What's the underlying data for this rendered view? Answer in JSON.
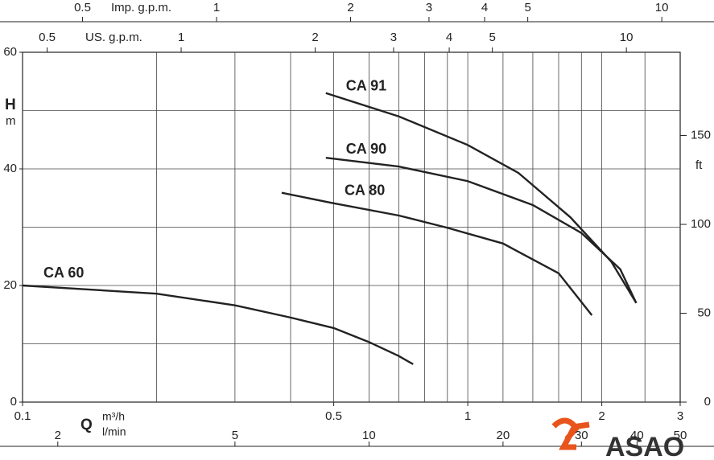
{
  "chart_data": {
    "type": "line",
    "log_x": true,
    "y_label": "H",
    "y_unit": "m",
    "y2_unit": "ft",
    "x_label": "Q",
    "x_unit": "m³/h",
    "x2_unit": "l/min",
    "top_axes": [
      {
        "label": "Imp. g.p.m.",
        "xlim": [
          0.36662,
          10.9986
        ],
        "xticks": [
          0.5,
          1,
          2,
          3,
          4,
          5,
          10
        ]
      },
      {
        "label": "US. g.p.m.",
        "xlim": [
          0.44029,
          13.2086
        ],
        "xticks": [
          0.5,
          1,
          2,
          3,
          4,
          5,
          10
        ]
      }
    ],
    "bottom_axis2": {
      "xlim": [
        1.6667,
        50
      ],
      "xticks": [
        2,
        5,
        10,
        20,
        30,
        40,
        50
      ]
    },
    "xlim": [
      0.1,
      3
    ],
    "xticks": [
      0.1,
      0.5,
      1,
      2,
      3
    ],
    "xgrid": [
      0.2,
      0.3,
      0.4,
      0.5,
      0.6,
      0.7,
      0.8,
      0.9,
      1,
      1.2,
      1.4,
      1.6,
      1.8,
      2,
      2.5
    ],
    "ylim": [
      0,
      60
    ],
    "yticks": [
      0,
      20,
      40,
      60
    ],
    "ygrid": [
      10,
      20,
      30,
      40,
      50
    ],
    "y2lim": [
      0,
      196.85
    ],
    "y2ticks": [
      0,
      50,
      100,
      150
    ],
    "line_color": "#222",
    "series": [
      {
        "name": "CA 60",
        "x": [
          0.1,
          0.2,
          0.3,
          0.4,
          0.5,
          0.6,
          0.7,
          0.754
        ],
        "values": [
          20,
          18.6,
          16.6,
          14.5,
          12.7,
          10.3,
          7.9,
          6.5
        ]
      },
      {
        "name": "CA 80",
        "x": [
          0.382,
          0.5,
          0.7,
          0.9,
          1.2,
          1.6,
          1.9
        ],
        "values": [
          35.9,
          34.1,
          32,
          29.9,
          27.2,
          22.1,
          14.9
        ]
      },
      {
        "name": "CA 90",
        "x": [
          0.48,
          0.7,
          1,
          1.4,
          1.8,
          2.2,
          2.39
        ],
        "values": [
          41.9,
          40.4,
          37.9,
          33.8,
          29,
          22.8,
          17
        ]
      },
      {
        "name": "CA 91",
        "x": [
          0.48,
          0.7,
          1,
          1.3,
          1.7,
          2.1,
          2.39
        ],
        "values": [
          53,
          49,
          44.1,
          39.3,
          31.7,
          24.1,
          17
        ]
      }
    ],
    "logo": "ASAO"
  }
}
